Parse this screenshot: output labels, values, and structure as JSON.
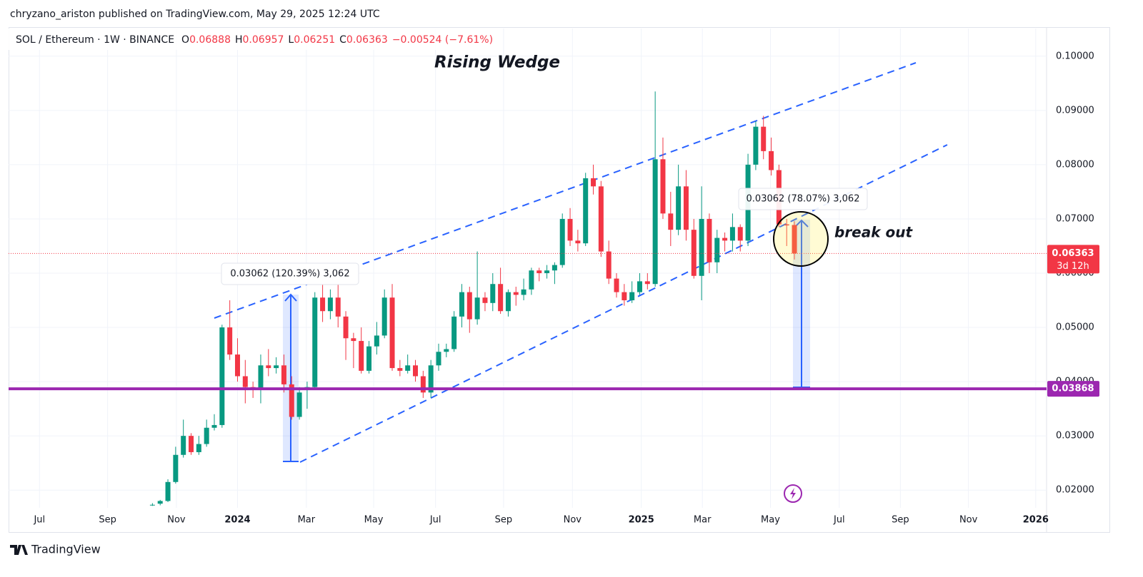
{
  "header": {
    "publisher": "chryzano_ariston published on TradingView.com, May 29, 2025 12:24 UTC",
    "symbol": "SOL / Ethereum · 1W · BINANCE",
    "o_label": "O",
    "o": "0.06888",
    "h_label": "H",
    "h": "0.06957",
    "l_label": "L",
    "l": "0.06251",
    "c_label": "C",
    "c": "0.06363",
    "change": "−0.00524 (−7.61%)"
  },
  "footer": {
    "logo": "TradingView"
  },
  "chart_data": {
    "type": "candlestick",
    "title": "Rising Wedge",
    "annotations": {
      "break": "break out",
      "measure1": "0.03062 (120.39%) 3,062",
      "measure2": "0.03062 (78.07%) 3,062"
    },
    "up_color": "#089981",
    "down_color": "#f23645",
    "current_price": 0.06363,
    "countdown": "3d 12h",
    "support": 0.03868,
    "support_color": "#9c27b0",
    "ylim": [
      0.0124,
      0.1051
    ],
    "yticks": [
      {
        "value": 0.02,
        "label": "0.02000"
      },
      {
        "value": 0.03,
        "label": "0.03000"
      },
      {
        "value": 0.04,
        "label": "0.04000"
      },
      {
        "value": 0.05,
        "label": "0.05000"
      },
      {
        "value": 0.06,
        "label": "0.06000"
      },
      {
        "value": 0.07,
        "label": "0.07000"
      },
      {
        "value": 0.08,
        "label": "0.08000"
      },
      {
        "value": 0.09,
        "label": "0.09000"
      },
      {
        "value": 0.1,
        "label": "0.10000"
      }
    ],
    "xlim": [
      -18.6,
      115.6
    ],
    "xticks": [
      {
        "value": -14.6,
        "label": "Jul"
      },
      {
        "value": -5.8,
        "label": "Sep"
      },
      {
        "value": 3.1,
        "label": "Nov"
      },
      {
        "value": 11.0,
        "label": "2024"
      },
      {
        "value": 19.9,
        "label": "Mar"
      },
      {
        "value": 28.6,
        "label": "May"
      },
      {
        "value": 36.6,
        "label": "Jul"
      },
      {
        "value": 45.4,
        "label": "Sep"
      },
      {
        "value": 54.3,
        "label": "Nov"
      },
      {
        "value": 63.2,
        "label": "2025"
      },
      {
        "value": 71.1,
        "label": "Mar"
      },
      {
        "value": 79.9,
        "label": "May"
      },
      {
        "value": 88.8,
        "label": "Jul"
      },
      {
        "value": 96.7,
        "label": "Sep"
      },
      {
        "value": 105.5,
        "label": "Nov"
      },
      {
        "value": 114.2,
        "label": "2026"
      }
    ],
    "open": [
      0.0172,
      0.0175,
      0.018,
      0.0215,
      0.0265,
      0.03,
      0.027,
      0.0285,
      0.0315,
      0.032,
      0.05,
      0.045,
      0.041,
      0.039,
      0.0385,
      0.043,
      0.0425,
      0.043,
      0.0395,
      0.0335,
      0.0385,
      0.039,
      0.0555,
      0.053,
      0.0555,
      0.052,
      0.048,
      0.0475,
      0.042,
      0.0465,
      0.0485,
      0.0555,
      0.0425,
      0.042,
      0.043,
      0.041,
      0.038,
      0.043,
      0.0455,
      0.046,
      0.052,
      0.0565,
      0.0515,
      0.0555,
      0.0545,
      0.058,
      0.053,
      0.0565,
      0.056,
      0.057,
      0.0605,
      0.06,
      0.0605,
      0.0615,
      0.07,
      0.066,
      0.0655,
      0.0775,
      0.076,
      0.064,
      0.059,
      0.0565,
      0.055,
      0.0565,
      0.0585,
      0.058,
      0.081,
      0.071,
      0.068,
      0.076,
      0.068,
      0.0595,
      0.07,
      0.062,
      0.0665,
      0.066,
      0.0685,
      0.066,
      0.08,
      0.087,
      0.0825,
      0.079,
      0.069,
      0.06888
    ],
    "high": [
      0.0176,
      0.0182,
      0.022,
      0.028,
      0.033,
      0.0305,
      0.03,
      0.033,
      0.034,
      0.0505,
      0.055,
      0.048,
      0.044,
      0.04,
      0.045,
      0.046,
      0.0445,
      0.045,
      0.041,
      0.039,
      0.04,
      0.0565,
      0.058,
      0.057,
      0.0585,
      0.053,
      0.049,
      0.05,
      0.0475,
      0.051,
      0.057,
      0.058,
      0.044,
      0.045,
      0.044,
      0.042,
      0.044,
      0.047,
      0.047,
      0.053,
      0.058,
      0.0575,
      0.064,
      0.0565,
      0.06,
      0.061,
      0.057,
      0.0575,
      0.059,
      0.061,
      0.061,
      0.0615,
      0.062,
      0.071,
      0.072,
      0.068,
      0.0785,
      0.08,
      0.077,
      0.066,
      0.06,
      0.058,
      0.0585,
      0.06,
      0.06,
      0.0935,
      0.085,
      0.075,
      0.08,
      0.079,
      0.07,
      0.076,
      0.071,
      0.068,
      0.0675,
      0.071,
      0.069,
      0.082,
      0.088,
      0.089,
      0.085,
      0.08,
      0.07,
      0.06957
    ],
    "low": [
      0.0171,
      0.0172,
      0.0178,
      0.0212,
      0.026,
      0.0265,
      0.0265,
      0.028,
      0.031,
      0.0315,
      0.044,
      0.04,
      0.036,
      0.037,
      0.036,
      0.041,
      0.0415,
      0.038,
      0.033,
      0.033,
      0.035,
      0.0385,
      0.051,
      0.0515,
      0.05,
      0.044,
      0.0425,
      0.0415,
      0.0415,
      0.045,
      0.048,
      0.042,
      0.041,
      0.0415,
      0.04,
      0.037,
      0.037,
      0.042,
      0.0445,
      0.0455,
      0.05,
      0.049,
      0.0505,
      0.053,
      0.053,
      0.0525,
      0.052,
      0.054,
      0.055,
      0.056,
      0.0585,
      0.059,
      0.058,
      0.061,
      0.065,
      0.064,
      0.065,
      0.0745,
      0.063,
      0.058,
      0.0555,
      0.054,
      0.0545,
      0.056,
      0.057,
      0.0575,
      0.07,
      0.065,
      0.067,
      0.066,
      0.059,
      0.055,
      0.06,
      0.06,
      0.064,
      0.064,
      0.064,
      0.065,
      0.079,
      0.081,
      0.078,
      0.0685,
      0.065,
      0.06251
    ],
    "close": [
      0.0173,
      0.018,
      0.0215,
      0.0265,
      0.03,
      0.027,
      0.0285,
      0.0315,
      0.032,
      0.05,
      0.045,
      0.041,
      0.039,
      0.0385,
      0.043,
      0.0425,
      0.043,
      0.0395,
      0.0335,
      0.038,
      0.039,
      0.0555,
      0.053,
      0.0555,
      0.052,
      0.048,
      0.0475,
      0.042,
      0.0465,
      0.0485,
      0.0555,
      0.0425,
      0.042,
      0.043,
      0.041,
      0.038,
      0.043,
      0.0455,
      0.046,
      0.052,
      0.0565,
      0.0515,
      0.0555,
      0.0545,
      0.058,
      0.053,
      0.0565,
      0.056,
      0.057,
      0.0605,
      0.06,
      0.0605,
      0.0615,
      0.07,
      0.066,
      0.0655,
      0.0775,
      0.076,
      0.064,
      0.059,
      0.0565,
      0.055,
      0.0565,
      0.0585,
      0.058,
      0.081,
      0.071,
      0.068,
      0.076,
      0.068,
      0.0595,
      0.07,
      0.062,
      0.0665,
      0.066,
      0.0685,
      0.066,
      0.08,
      0.087,
      0.0825,
      0.079,
      0.069,
      0.0688,
      0.06363
    ]
  }
}
